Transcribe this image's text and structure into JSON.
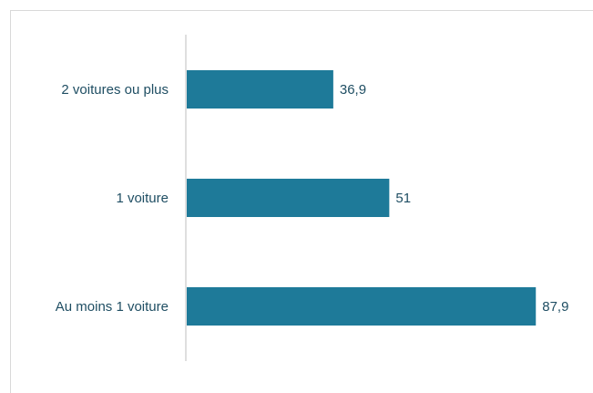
{
  "chart_data": {
    "type": "bar",
    "orientation": "horizontal",
    "categories": [
      "2 voitures ou plus",
      "1 voiture",
      "Au moins 1 voiture"
    ],
    "values": [
      36.9,
      51,
      87.9
    ],
    "value_labels": [
      "36,9",
      "51",
      "87,9"
    ],
    "xlim": [
      0,
      100
    ],
    "grid": false,
    "legend": "none"
  },
  "colors": {
    "bar": "#1e7a99",
    "axis": "#bfbfbf",
    "frame": "#d9d9d9",
    "text": "#1f4e63"
  }
}
